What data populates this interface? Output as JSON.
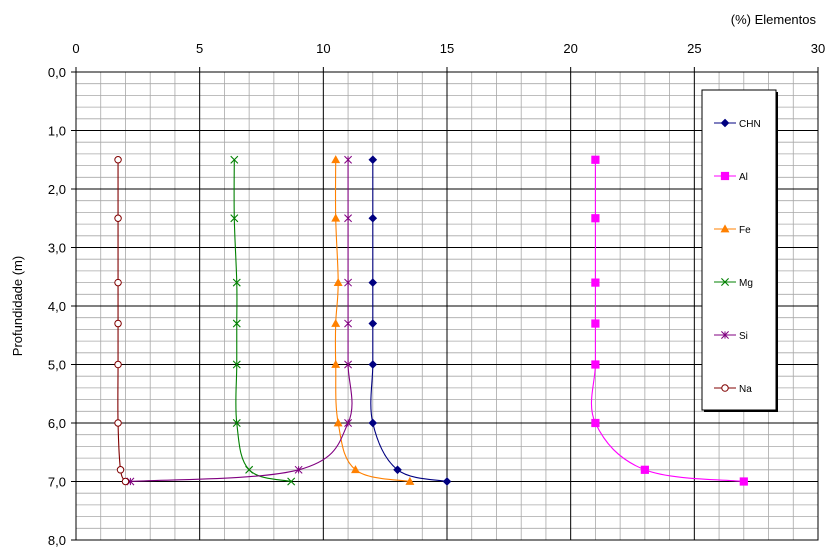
{
  "chart_data": {
    "type": "line",
    "xlabel": "(%) Elementos",
    "ylabel": "Profundidade (m)",
    "x_axis_position": "top",
    "y_inverted": true,
    "xlim": [
      0,
      30
    ],
    "ylim": [
      0,
      8
    ],
    "x_ticks": [
      0,
      5,
      10,
      15,
      20,
      25,
      30
    ],
    "x_tick_labels": [
      "0",
      "5",
      "10",
      "15",
      "20",
      "25",
      "30"
    ],
    "y_ticks": [
      0,
      1,
      2,
      3,
      4,
      5,
      6,
      7,
      8
    ],
    "y_tick_labels": [
      "0,0",
      "1,0",
      "2,0",
      "3,0",
      "4,0",
      "5,0",
      "6,0",
      "7,0",
      "8,0"
    ],
    "grid": true,
    "legend_position": "right",
    "series": [
      {
        "name": "CHN",
        "color": "#000080",
        "marker": "diamond",
        "x": [
          12,
          12,
          12,
          12,
          12,
          12,
          13,
          15
        ],
        "y": [
          1.5,
          2.5,
          3.6,
          4.3,
          5.0,
          6.0,
          6.8,
          7.0
        ]
      },
      {
        "name": "Al",
        "color": "#FF00FF",
        "marker": "square",
        "x": [
          21,
          21,
          21,
          21,
          21,
          21,
          23,
          27
        ],
        "y": [
          1.5,
          2.5,
          3.6,
          4.3,
          5.0,
          6.0,
          6.8,
          7.0
        ]
      },
      {
        "name": "Fe",
        "color": "#FF8000",
        "marker": "triangle",
        "x": [
          10.5,
          10.5,
          10.6,
          10.5,
          10.5,
          10.6,
          11.3,
          13.5
        ],
        "y": [
          1.5,
          2.5,
          3.6,
          4.3,
          5.0,
          6.0,
          6.8,
          7.0
        ]
      },
      {
        "name": "Mg",
        "color": "#008000",
        "marker": "x",
        "x": [
          6.4,
          6.4,
          6.5,
          6.5,
          6.5,
          6.5,
          7.0,
          8.7
        ],
        "y": [
          1.5,
          2.5,
          3.6,
          4.3,
          5.0,
          6.0,
          6.8,
          7.0
        ]
      },
      {
        "name": "Si",
        "color": "#800080",
        "marker": "star",
        "x": [
          11,
          11,
          11,
          11,
          11,
          11,
          9,
          2.2
        ],
        "y": [
          1.5,
          2.5,
          3.6,
          4.3,
          5.0,
          6.0,
          6.8,
          7.0
        ]
      },
      {
        "name": "Na",
        "color": "#800000",
        "marker": "circle",
        "x": [
          1.7,
          1.7,
          1.7,
          1.7,
          1.7,
          1.7,
          1.8,
          2.0
        ],
        "y": [
          1.5,
          2.5,
          3.6,
          4.3,
          5.0,
          6.0,
          6.8,
          7.0
        ]
      }
    ]
  }
}
